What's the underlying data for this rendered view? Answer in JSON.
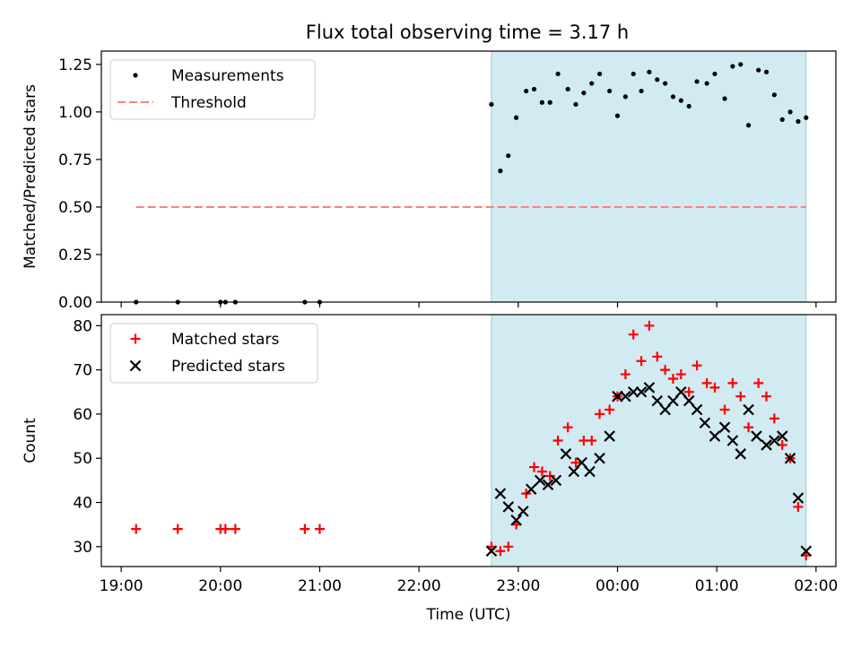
{
  "title": "Flux total observing time = 3.17 h",
  "colors": {
    "observing_span": "#add8e6",
    "measurement": "#000000",
    "threshold": "#ff7f7f",
    "matched": "#ff0000",
    "predicted": "#000000"
  },
  "chart_data": [
    {
      "type": "scatter",
      "ylabel": "Matched/Predicted stars",
      "xlabel": "",
      "xlim": [
        18.8,
        26.2
      ],
      "ylim": [
        0,
        1.32
      ],
      "yticks": [
        0,
        0.25,
        0.5,
        0.75,
        1.0,
        1.25
      ],
      "ytick_labels": [
        "0.00",
        "0.25",
        "0.50",
        "0.75",
        "1.00",
        "1.25"
      ],
      "observing_span": [
        22.73,
        25.9
      ],
      "legend": {
        "placement": "upper-left",
        "entries": [
          "Measurements",
          "Threshold"
        ]
      },
      "threshold": {
        "name": "Threshold",
        "y": 0.5,
        "x_range": [
          19.15,
          25.9
        ]
      },
      "series": [
        {
          "name": "Measurements",
          "x": [
            19.15,
            19.57,
            20.0,
            20.05,
            20.15,
            20.85,
            21.0,
            22.73,
            22.82,
            22.9,
            22.98,
            23.08,
            23.16,
            23.24,
            23.32,
            23.4,
            23.5,
            23.58,
            23.66,
            23.74,
            23.82,
            23.92,
            24.0,
            24.08,
            24.16,
            24.24,
            24.32,
            24.4,
            24.48,
            24.56,
            24.64,
            24.72,
            24.8,
            24.9,
            24.98,
            25.08,
            25.16,
            25.24,
            25.32,
            25.42,
            25.5,
            25.58,
            25.66,
            25.74,
            25.82,
            25.9
          ],
          "y": [
            0,
            0,
            0,
            0,
            0,
            0,
            0,
            1.04,
            0.69,
            0.77,
            0.97,
            1.11,
            1.12,
            1.05,
            1.05,
            1.2,
            1.12,
            1.04,
            1.1,
            1.15,
            1.2,
            1.11,
            0.98,
            1.08,
            1.2,
            1.11,
            1.21,
            1.17,
            1.15,
            1.08,
            1.06,
            1.03,
            1.16,
            1.15,
            1.2,
            1.07,
            1.24,
            1.25,
            0.93,
            1.22,
            1.21,
            1.09,
            0.96,
            1.0,
            0.95,
            0.97
          ]
        }
      ]
    },
    {
      "type": "scatter",
      "ylabel": "Count",
      "xlabel": "Time (UTC)",
      "xlim": [
        18.8,
        26.2
      ],
      "ylim": [
        25.5,
        82.5
      ],
      "yticks": [
        30,
        40,
        50,
        60,
        70,
        80
      ],
      "ytick_labels": [
        "30",
        "40",
        "50",
        "60",
        "70",
        "80"
      ],
      "xticks": [
        19,
        20,
        21,
        22,
        23,
        24,
        25,
        26
      ],
      "xtick_labels": [
        "19:00",
        "20:00",
        "21:00",
        "22:00",
        "23:00",
        "00:00",
        "01:00",
        "02:00"
      ],
      "observing_span": [
        22.73,
        25.9
      ],
      "legend": {
        "placement": "upper-left",
        "entries": [
          "Matched stars",
          "Predicted stars"
        ]
      },
      "series": [
        {
          "name": "Matched stars",
          "marker": "plus",
          "x": [
            19.15,
            19.57,
            20.0,
            20.05,
            20.15,
            20.85,
            21.0,
            22.73,
            22.82,
            22.9,
            22.98,
            23.08,
            23.16,
            23.24,
            23.32,
            23.4,
            23.5,
            23.58,
            23.66,
            23.74,
            23.82,
            23.92,
            24.0,
            24.08,
            24.16,
            24.24,
            24.32,
            24.4,
            24.48,
            24.56,
            24.64,
            24.72,
            24.8,
            24.9,
            24.98,
            25.08,
            25.16,
            25.24,
            25.32,
            25.42,
            25.5,
            25.58,
            25.66,
            25.74,
            25.82,
            25.9
          ],
          "y": [
            34,
            34,
            34,
            34,
            34,
            34,
            34,
            30,
            29,
            30,
            35,
            42,
            48,
            47,
            46,
            54,
            57,
            49,
            54,
            54,
            60,
            61,
            64,
            69,
            78,
            72,
            80,
            73,
            70,
            68,
            69,
            65,
            71,
            67,
            66,
            61,
            67,
            64,
            57,
            67,
            64,
            59,
            53,
            50,
            39,
            28
          ]
        },
        {
          "name": "Predicted stars",
          "marker": "x",
          "x": [
            22.73,
            22.82,
            22.9,
            22.98,
            23.05,
            23.13,
            23.22,
            23.3,
            23.38,
            23.48,
            23.56,
            23.64,
            23.72,
            23.82,
            23.92,
            24.0,
            24.08,
            24.16,
            24.24,
            24.32,
            24.4,
            24.48,
            24.56,
            24.64,
            24.72,
            24.8,
            24.88,
            24.98,
            25.08,
            25.16,
            25.24,
            25.32,
            25.4,
            25.5,
            25.58,
            25.66,
            25.74,
            25.82,
            25.9
          ],
          "y": [
            29,
            42,
            39,
            36,
            38,
            43,
            45,
            44,
            45,
            51,
            47,
            49,
            47,
            50,
            55,
            64,
            64,
            65,
            65,
            66,
            63,
            61,
            63,
            65,
            63,
            61,
            58,
            55,
            57,
            54,
            51,
            61,
            55,
            53,
            54,
            55,
            50,
            41,
            29
          ]
        }
      ]
    }
  ]
}
